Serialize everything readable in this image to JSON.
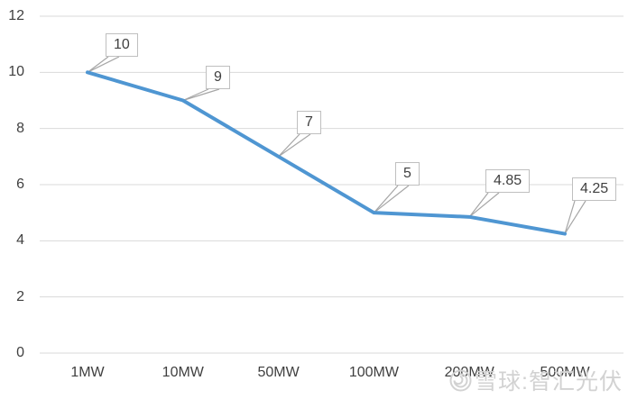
{
  "chart_data": {
    "type": "line",
    "title": "",
    "xlabel": "",
    "ylabel": "",
    "categories": [
      "1MW",
      "10MW",
      "50MW",
      "100MW",
      "200MW",
      "500MW"
    ],
    "series": [
      {
        "name": "",
        "values": [
          10,
          9,
          7,
          5,
          4.85,
          4.25
        ]
      }
    ],
    "data_labels": [
      "10",
      "9",
      "7",
      "5",
      "4.85",
      "4.25"
    ],
    "ylim": [
      0,
      12
    ],
    "yticks": [
      0,
      2,
      4,
      6,
      8,
      10,
      12
    ],
    "grid": "horizontal",
    "legend": "none",
    "colors": {
      "line": "#4f96d2",
      "gridline": "#d9d9d9",
      "axis_text": "#404040",
      "callout_border": "#bfbfbf",
      "callout_fill": "#ffffff",
      "leader_line": "#a6a6a6"
    }
  },
  "watermark": {
    "logo": "snowball-icon",
    "text": "雪球:智汇光伏",
    "color": "#d2d2d2"
  }
}
